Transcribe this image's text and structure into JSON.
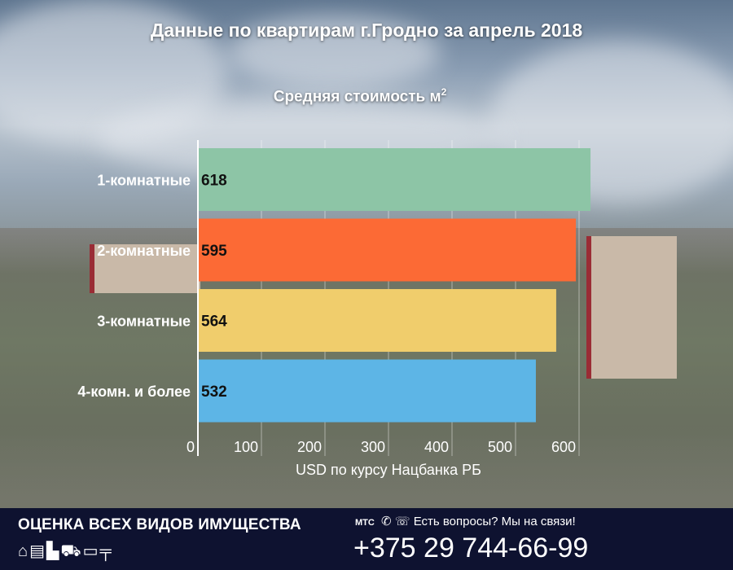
{
  "title": "Данные по квартирам г.Гродно за апрель 2018",
  "subtitle": "Средняя стоимость м",
  "subtitle_sup": "2",
  "chart_data": {
    "type": "bar",
    "orientation": "horizontal",
    "title": "Средняя стоимость м²",
    "categories": [
      "1-комнатные",
      "2-комнатные",
      "3-комнатные",
      "4-комн. и более"
    ],
    "values": [
      618,
      595,
      564,
      532
    ],
    "colors": [
      "#8dc5a6",
      "#fc6a35",
      "#f0cd6c",
      "#5db5e6"
    ],
    "xlabel": "USD по курсу Нацбанка РБ",
    "ylabel": "",
    "xlim": [
      0,
      640
    ],
    "xticks": [
      0,
      100,
      200,
      300,
      400,
      500,
      600
    ],
    "grid": true,
    "data_labels": true
  },
  "banner": {
    "title": "ОЦЕНКА ВСЕХ ВИДОВ ИМУЩЕСТВА",
    "icons": [
      "house-icon",
      "garage-icon",
      "factory-icon",
      "truck-icon",
      "computer-icon",
      "drill-icon"
    ],
    "operators": "МТС",
    "messengers": [
      "whatsapp-icon",
      "viber-icon"
    ],
    "question": "Есть вопросы? Мы на связи!",
    "phone": "+375 29 744-66-99"
  }
}
